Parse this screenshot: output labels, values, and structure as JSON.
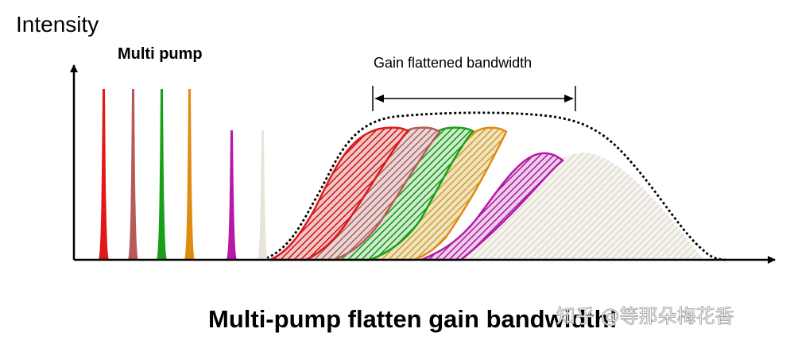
{
  "diagram": {
    "y_axis_label": "Intensity",
    "pump_label": "Multi pump",
    "bandwidth_label": "Gain flattened bandwidth",
    "caption": "Multi-pump flatten gain bandwidth!",
    "watermark": "知乎 @等那朵梅花香",
    "pumps": [
      {
        "name": "pump-red",
        "color": "#e01818",
        "height": 1.0
      },
      {
        "name": "pump-rose",
        "color": "#b85a5a",
        "height": 1.0
      },
      {
        "name": "pump-green",
        "color": "#18a018",
        "height": 1.0
      },
      {
        "name": "pump-orange",
        "color": "#e08a10",
        "height": 1.0
      },
      {
        "name": "pump-magenta",
        "color": "#b818a8",
        "height": 0.75
      },
      {
        "name": "pump-light",
        "color": "#e8e4da",
        "height": 0.75
      }
    ]
  }
}
